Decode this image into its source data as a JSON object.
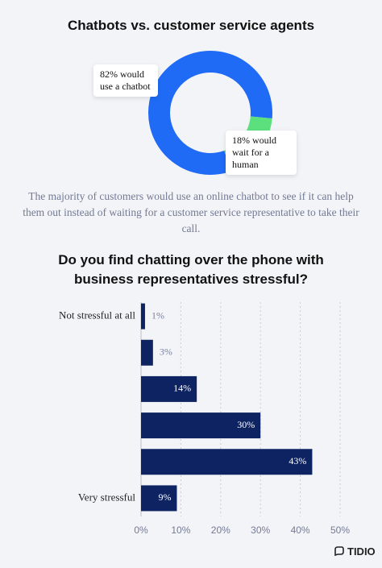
{
  "chart_data": [
    {
      "type": "donut",
      "title": "Chatbots vs. customer service agents",
      "categories": [
        "would use a chatbot",
        "would wait for a human"
      ],
      "values": [
        82,
        18
      ],
      "value_labels": [
        "82% would use a chatbot",
        "18% would wait for a human"
      ],
      "colors": [
        "#1f6bf5",
        "#5ce07d"
      ]
    },
    {
      "type": "hbar",
      "title": "Do you find chatting over the phone with business representatives stressful?",
      "categories": [
        "Not stressful at all",
        null,
        null,
        null,
        null,
        "Very stressful"
      ],
      "values": [
        1,
        3,
        14,
        30,
        43,
        9
      ],
      "value_labels": [
        "1%",
        "3%",
        "14%",
        "30%",
        "43%",
        "9%"
      ],
      "color": "#0e2361",
      "xlim": [
        0,
        50
      ],
      "xticks": [
        {
          "value": 0,
          "label": "0%"
        },
        {
          "value": 10,
          "label": "10%"
        },
        {
          "value": 20,
          "label": "20%"
        },
        {
          "value": 30,
          "label": "30%"
        },
        {
          "value": 40,
          "label": "40%"
        },
        {
          "value": 50,
          "label": "50%"
        }
      ],
      "grid": true
    }
  ],
  "caption": "The majority of customers would use an online chatbot to see if it can help them out instead of waiting for a customer service representative to take their call.",
  "brand": "TIDIO"
}
